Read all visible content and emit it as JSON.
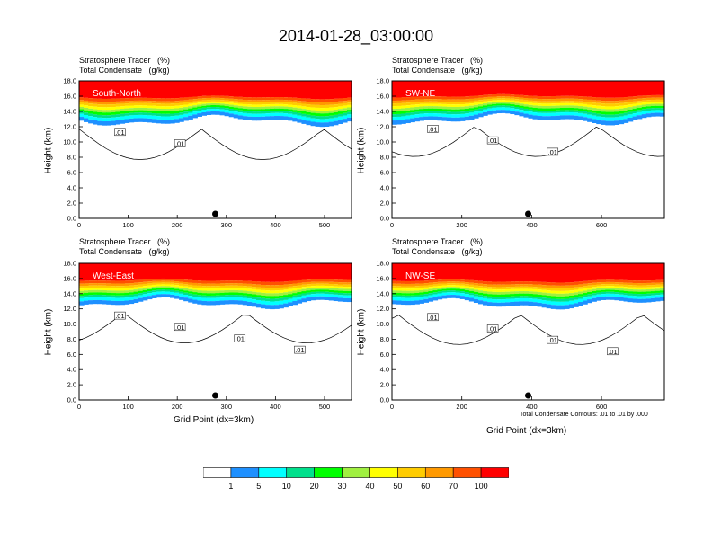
{
  "title": "2014-01-28_03:00:00",
  "panel_label_line1": "Stratosphere Tracer   (%)",
  "panel_label_line2": "Total Condensate   (g/kg)",
  "ylabel": "Height (km)",
  "xlabel": "Grid Point (dx=3km)",
  "contour_note": "Total Condensate Contours: .01 to .01 by .000",
  "chart_data": [
    {
      "type": "heatmap",
      "name": "South-North",
      "xticks": [
        0,
        100,
        200,
        300,
        400,
        500
      ],
      "xlim": [
        0,
        555
      ],
      "yticks": [
        "0.0",
        "2.0",
        "4.0",
        "6.0",
        "8.0",
        "10.0",
        "12.0",
        "14.0",
        "16.0",
        "18.0"
      ],
      "ylim": [
        0,
        18
      ],
      "contour_labels": [
        ".01",
        ".01"
      ],
      "tracer_base_km": 13.2
    },
    {
      "type": "heatmap",
      "name": "SW-NE",
      "xticks": [
        0,
        200,
        400,
        600
      ],
      "xlim": [
        0,
        780
      ],
      "yticks": [
        "0.0",
        "2.0",
        "4.0",
        "6.0",
        "8.0",
        "10.0",
        "12.0",
        "14.0",
        "16.0",
        "18.0"
      ],
      "ylim": [
        0,
        18
      ],
      "contour_labels": [
        ".01",
        ".01",
        ".01"
      ],
      "tracer_base_km": 13.6
    },
    {
      "type": "heatmap",
      "name": "West-East",
      "xticks": [
        0,
        100,
        200,
        300,
        400,
        500
      ],
      "xlim": [
        0,
        555
      ],
      "yticks": [
        "0.0",
        "2.0",
        "4.0",
        "6.0",
        "8.0",
        "10.0",
        "12.0",
        "14.0",
        "16.0",
        "18.0"
      ],
      "ylim": [
        0,
        18
      ],
      "contour_labels": [
        ".01",
        ".01",
        ".01",
        ".01"
      ],
      "tracer_base_km": 13.0
    },
    {
      "type": "heatmap",
      "name": "NW-SE",
      "xticks": [
        0,
        200,
        400,
        600
      ],
      "xlim": [
        0,
        780
      ],
      "yticks": [
        "0.0",
        "2.0",
        "4.0",
        "6.0",
        "8.0",
        "10.0",
        "12.0",
        "14.0",
        "16.0",
        "18.0"
      ],
      "ylim": [
        0,
        18
      ],
      "contour_labels": [
        ".01",
        ".01",
        ".01",
        ".01"
      ],
      "tracer_base_km": 12.8
    }
  ],
  "colorbar": {
    "colors": [
      "#ffffff",
      "#1e90ff",
      "#00ffff",
      "#00e08c",
      "#00ff00",
      "#a0f040",
      "#ffff00",
      "#ffcc00",
      "#ff9900",
      "#ff5000",
      "#ff0000"
    ],
    "labels": [
      "1",
      "5",
      "10",
      "20",
      "30",
      "40",
      "50",
      "60",
      "70",
      "100"
    ]
  }
}
